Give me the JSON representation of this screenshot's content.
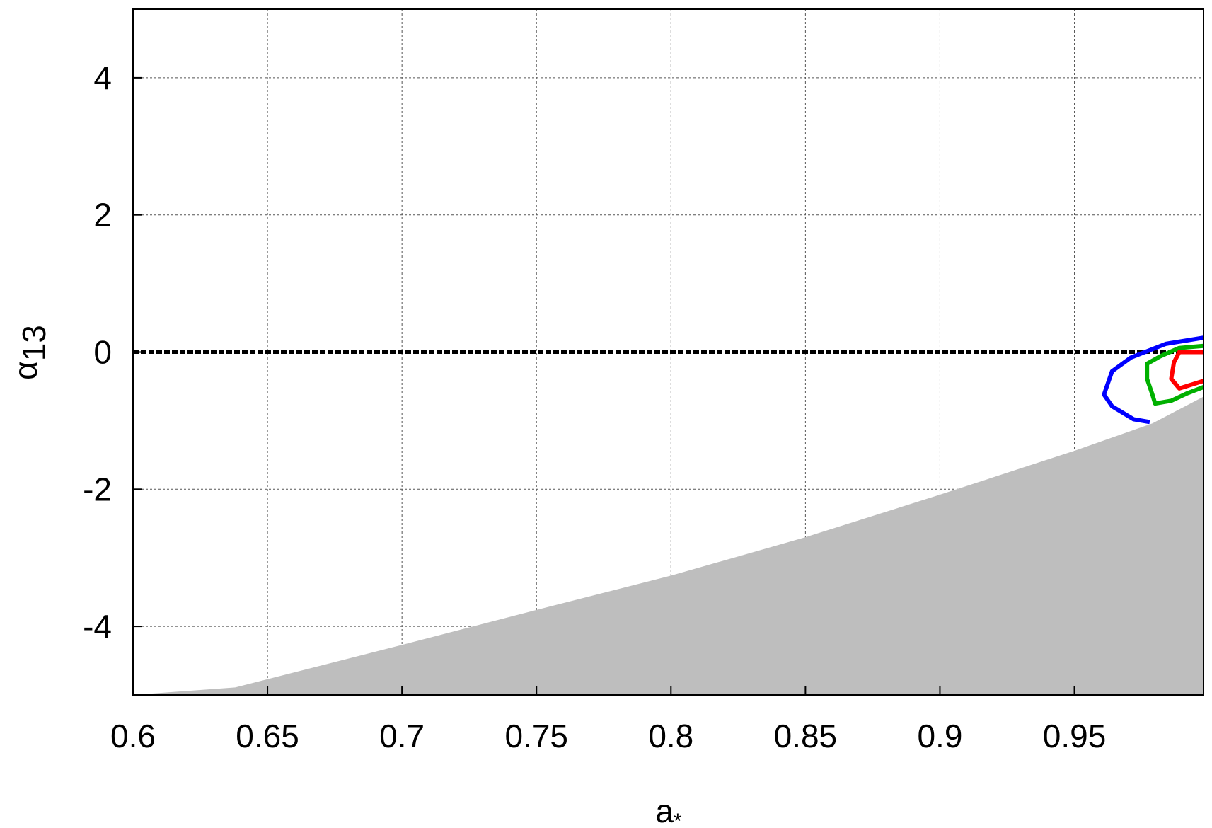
{
  "chart_data": {
    "type": "line",
    "xlabel": {
      "main": "a",
      "sub": "*"
    },
    "ylabel": {
      "main": "α",
      "sub": "13"
    },
    "xlim": [
      0.6,
      0.998
    ],
    "ylim": [
      -5,
      5
    ],
    "xticks": [
      0.6,
      0.65,
      0.7,
      0.75,
      0.8,
      0.85,
      0.9,
      0.95
    ],
    "yticks": [
      -4,
      -2,
      0,
      2,
      4
    ],
    "grid": true,
    "series": [
      {
        "color": "#bebebe",
        "fill": true,
        "x": [
          0.6,
          0.638,
          0.7,
          0.75,
          0.8,
          0.85,
          0.9,
          0.95,
          0.979,
          0.998
        ],
        "values": [
          -5,
          -4.89,
          -4.27,
          -3.76,
          -3.26,
          -2.7,
          -2.08,
          -1.44,
          -1.04,
          -0.65
        ]
      },
      {
        "color": "#000000",
        "dashed": true,
        "x": [
          0.6,
          0.998
        ],
        "values": [
          0,
          0
        ]
      },
      {
        "color": "#0000ff",
        "x": [
          0.998,
          0.984,
          0.971,
          0.964,
          0.961,
          0.964,
          0.972,
          0.978
        ],
        "values": [
          0.21,
          0.12,
          -0.08,
          -0.28,
          -0.62,
          -0.79,
          -0.98,
          -1.02
        ]
      },
      {
        "color": "#00b000",
        "x": [
          0.998,
          0.989,
          0.982,
          0.977,
          0.977,
          0.979,
          0.98,
          0.986,
          0.992,
          0.998
        ],
        "values": [
          0.09,
          0.06,
          -0.06,
          -0.17,
          -0.39,
          -0.62,
          -0.75,
          -0.71,
          -0.6,
          -0.51
        ]
      },
      {
        "color": "#ff0000",
        "x": [
          0.998,
          0.989,
          0.987,
          0.986,
          0.989,
          0.998
        ],
        "values": [
          0,
          0,
          -0.15,
          -0.39,
          -0.53,
          -0.42
        ]
      }
    ]
  }
}
